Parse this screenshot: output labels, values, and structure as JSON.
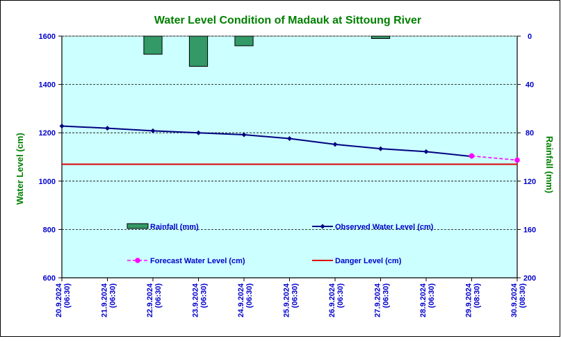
{
  "colors": {
    "title": "#008000",
    "axis_label": "#008000",
    "tick_label": "#0000cc",
    "plot_bg": "#ccffff",
    "rainfall_fill": "#339966",
    "observed_line": "#000080",
    "forecast_line": "#ff00ff",
    "danger_line": "#dd0000"
  },
  "chart_data": {
    "type": "line",
    "title": "Water Level Condition of Madauk at Sittoung River",
    "ylabel": "Water Level (cm)",
    "y2label": "Rainfall (mm)",
    "ylim": [
      600,
      1600
    ],
    "y2lim": [
      200,
      0
    ],
    "y_ticks": [
      "600",
      "800",
      "1000",
      "1200",
      "1400",
      "1600"
    ],
    "y2_ticks": [
      "200",
      "160",
      "120",
      "80",
      "40",
      "0"
    ],
    "grid": true,
    "categories": [
      [
        "20.9.2024",
        "(06:30)"
      ],
      [
        "21.9.2024",
        "(06:30)"
      ],
      [
        "22.9.2024",
        "(06:30)"
      ],
      [
        "23.9.2024",
        "(06:30)"
      ],
      [
        "24.9.2024",
        "(06:30)"
      ],
      [
        "25.9.2024",
        "(06:30)"
      ],
      [
        "26.9.2024",
        "(06:30)"
      ],
      [
        "27.9.2024",
        "(06:30)"
      ],
      [
        "28.9.2024",
        "(06:30)"
      ],
      [
        "29.9.2024",
        "(08:30)"
      ],
      [
        "30.9.2024",
        "(08:30)"
      ]
    ],
    "series": [
      {
        "name": "Rainfall (mm)",
        "kind": "bar",
        "axis": "right",
        "values": [
          null,
          0,
          15,
          25,
          8,
          0,
          0,
          2,
          0,
          0,
          null
        ]
      },
      {
        "name": "Observed Water Level (cm)",
        "kind": "line",
        "values": [
          1228,
          1219,
          1208,
          1200,
          1192,
          1176,
          1152,
          1134,
          1122,
          1102,
          null
        ]
      },
      {
        "name": "Forecast Water Level (cm)",
        "kind": "dashed-line",
        "values": [
          null,
          null,
          null,
          null,
          null,
          null,
          null,
          null,
          null,
          1104,
          1087
        ]
      },
      {
        "name": "Danger Level (cm)",
        "kind": "flat-line",
        "value": 1070
      }
    ],
    "legend_position": "inside-bottom"
  }
}
